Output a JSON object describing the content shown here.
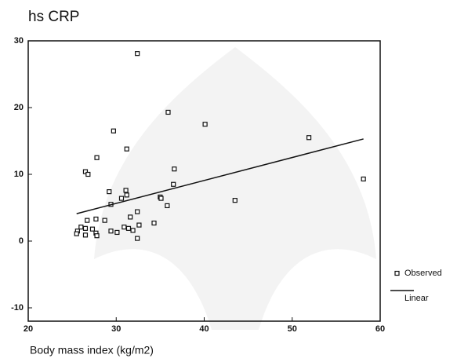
{
  "chart_data": {
    "type": "scatter",
    "title": "hs CRP",
    "xlabel": "Body mass index (kg/m2)",
    "xlim": [
      20,
      60
    ],
    "xticks": [
      20,
      30,
      40,
      50,
      60
    ],
    "ylim": [
      -12,
      30
    ],
    "yticks": [
      -10,
      0,
      10,
      20,
      30
    ],
    "legend": "right",
    "series": [
      {
        "name": "Observed",
        "color": "#111111",
        "mode": "markers",
        "x": [
          32.4,
          35.9,
          40.1,
          51.9,
          29.7,
          31.2,
          27.8,
          26.5,
          26.8,
          36.6,
          36.5,
          58.1,
          29.2,
          31.1,
          31.2,
          30.6,
          35.0,
          35.1,
          43.5,
          29.4,
          35.8,
          32.4,
          31.6,
          27.7,
          28.7,
          26.7,
          34.3,
          32.6,
          26.0,
          30.9,
          26.5,
          25.6,
          31.4,
          31.9,
          27.3,
          29.4,
          30.1,
          27.7,
          27.8,
          25.5,
          26.5,
          32.4
        ],
        "values": [
          28.1,
          19.3,
          17.5,
          15.5,
          16.5,
          13.8,
          12.5,
          10.4,
          10.0,
          10.8,
          8.5,
          9.3,
          7.4,
          7.6,
          6.9,
          6.4,
          6.6,
          6.4,
          6.1,
          5.5,
          5.3,
          4.4,
          3.6,
          3.3,
          3.1,
          3.1,
          2.7,
          2.4,
          2.1,
          2.1,
          1.9,
          1.5,
          1.9,
          1.6,
          1.8,
          1.5,
          1.3,
          1.2,
          0.8,
          1.1,
          0.9,
          0.4
        ]
      },
      {
        "name": "Linear",
        "color": "#111111",
        "mode": "line",
        "x": [
          25.5,
          58.1
        ],
        "values": [
          4.1,
          15.3
        ]
      }
    ]
  }
}
